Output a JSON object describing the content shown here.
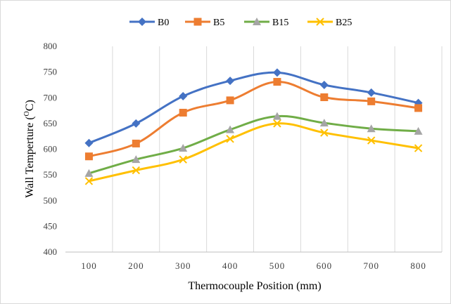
{
  "chart_data": {
    "type": "line",
    "categories": [
      "100",
      "200",
      "300",
      "400",
      "500",
      "600",
      "700",
      "800"
    ],
    "xlabel": "Thermocouple Position (mm)",
    "ylabel_main": "Wall Temperture (",
    "ylabel_super": "O",
    "ylabel_unit": "C)",
    "ylim": [
      400,
      800
    ],
    "yticks": [
      400,
      450,
      500,
      550,
      600,
      650,
      700,
      750,
      800
    ],
    "grid": "vertical",
    "legend_position": "top",
    "series": [
      {
        "name": "B0",
        "color": "#4472c4",
        "marker": "diamond",
        "values": [
          612,
          650,
          703,
          733,
          749,
          725,
          710,
          690
        ]
      },
      {
        "name": "B5",
        "color": "#ed7d31",
        "marker": "square",
        "values": [
          586,
          611,
          671,
          695,
          731,
          701,
          693,
          680
        ]
      },
      {
        "name": "B15",
        "color": "#70ad47",
        "marker": "triangle",
        "values": [
          553,
          580,
          602,
          638,
          664,
          651,
          640,
          635
        ]
      },
      {
        "name": "B25",
        "color": "#ffc000",
        "marker": "x",
        "values": [
          538,
          559,
          580,
          620,
          650,
          632,
          617,
          602
        ]
      }
    ]
  }
}
